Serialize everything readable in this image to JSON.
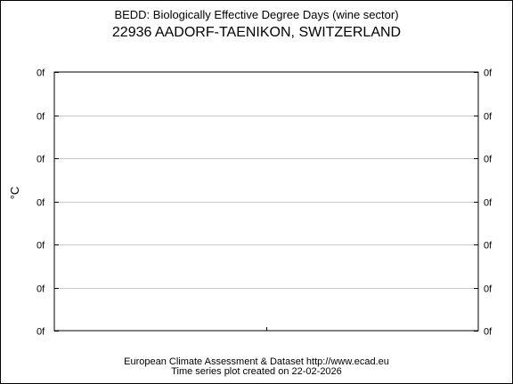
{
  "chart_data": {
    "type": "line",
    "title": "BEDD: Biologically Effective Degree Days (wine sector)",
    "subtitle": "22936 AADORF-TAENIKON, SWITZERLAND",
    "ylabel": "°C",
    "xlabel": "",
    "y_ticks": [
      "0f",
      "0f",
      "0f",
      "0f",
      "0f",
      "0f",
      "0f"
    ],
    "x_ticks": [],
    "series": [],
    "grid": true,
    "legend": "none",
    "colors": {
      "axis": "#000000",
      "grid": "#c8c8c8",
      "background": "#ffffff"
    }
  },
  "footer": {
    "line1": "European Climate Assessment & Dataset  http://www.ecad.eu",
    "line2": "Time series plot created on 22-02-2026"
  }
}
